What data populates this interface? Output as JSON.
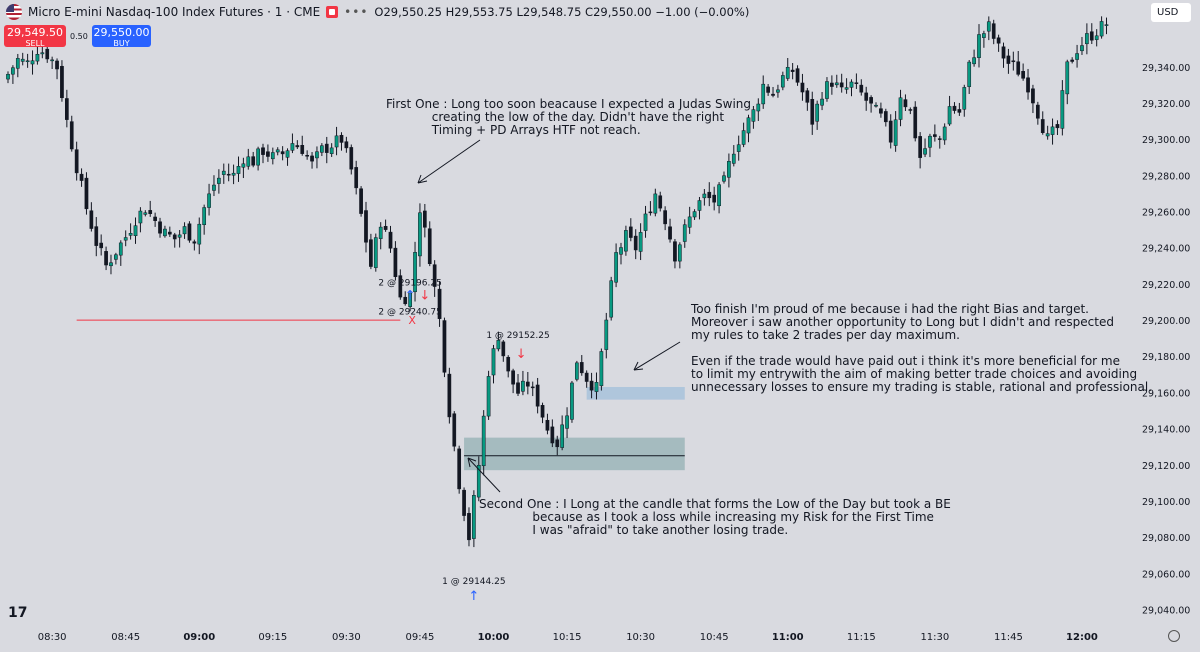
{
  "header": {
    "title": "Micro E-mini Nasdaq-100 Index Futures · 1 · CME",
    "more": "•••",
    "ohlc": "O29,550.25 H29,553.75 L29,548.75 C29,550.00 −1.00 (−0.00%)"
  },
  "trade": {
    "sell_price": "29,549.50",
    "sell_label": "SELL",
    "spread": "0.50",
    "buy_price": "29,550.00",
    "buy_label": "BUY"
  },
  "currency": "USD",
  "colors": {
    "up": "#089981",
    "down": "#131722",
    "annotation": "#131722",
    "zone": "#9bb5b8",
    "zone2": "#9fbfd9",
    "sell": "#f23645",
    "buy": "#2962ff"
  },
  "chart_data": {
    "type": "candlestick",
    "y_axis": {
      "ticks": [
        29340,
        29320,
        29300,
        29280,
        29260,
        29240,
        29220,
        29200,
        29180,
        29160,
        29140,
        29120,
        29100,
        29080,
        29060,
        29040
      ],
      "tick_labels": [
        "29,340.00",
        "29,320.00",
        "29,300.00",
        "29,280.00",
        "29,260.00",
        "29,240.00",
        "29,220.00",
        "29,200.00",
        "29,180.00",
        "29,160.00",
        "29,140.00",
        "29,120.00",
        "29,100.00",
        "29,080.00",
        "29,060.00",
        "29,040.00"
      ],
      "range": [
        29026,
        29364
      ]
    },
    "x_axis": {
      "labels": [
        "08:30",
        "08:45",
        "09:00",
        "09:15",
        "09:30",
        "09:45",
        "10:00",
        "10:15",
        "10:30",
        "10:45",
        "11:00",
        "11:15",
        "11:30",
        "11:45",
        "12:00"
      ],
      "label_bars": [
        9,
        24,
        39,
        54,
        69,
        84,
        99,
        114,
        129,
        144,
        159,
        174,
        189,
        204,
        219
      ],
      "bar_minutes": 1
    },
    "close_path": [
      [
        0,
        29336
      ],
      [
        2,
        29344
      ],
      [
        4,
        29342
      ],
      [
        6,
        29350
      ],
      [
        8,
        29347
      ],
      [
        10,
        29340
      ],
      [
        12,
        29310
      ],
      [
        14,
        29285
      ],
      [
        16,
        29262
      ],
      [
        18,
        29243
      ],
      [
        20,
        29230
      ],
      [
        22,
        29238
      ],
      [
        24,
        29246
      ],
      [
        26,
        29256
      ],
      [
        28,
        29262
      ],
      [
        30,
        29255
      ],
      [
        32,
        29248
      ],
      [
        34,
        29245
      ],
      [
        36,
        29250
      ],
      [
        38,
        29245
      ],
      [
        40,
        29262
      ],
      [
        42,
        29275
      ],
      [
        44,
        29282
      ],
      [
        46,
        29280
      ],
      [
        48,
        29290
      ],
      [
        50,
        29288
      ],
      [
        52,
        29294
      ],
      [
        54,
        29290
      ],
      [
        56,
        29292
      ],
      [
        58,
        29298
      ],
      [
        60,
        29295
      ],
      [
        62,
        29286
      ],
      [
        64,
        29294
      ],
      [
        66,
        29297
      ],
      [
        68,
        29300
      ],
      [
        70,
        29283
      ],
      [
        72,
        29258
      ],
      [
        74,
        29230
      ],
      [
        76,
        29255
      ],
      [
        78,
        29240
      ],
      [
        80,
        29212
      ],
      [
        82,
        29214
      ],
      [
        84,
        29262
      ],
      [
        86,
        29235
      ],
      [
        88,
        29200
      ],
      [
        90,
        29150
      ],
      [
        92,
        29110
      ],
      [
        94,
        29080
      ],
      [
        96,
        29120
      ],
      [
        98,
        29172
      ],
      [
        100,
        29192
      ],
      [
        102,
        29170
      ],
      [
        104,
        29160
      ],
      [
        106,
        29165
      ],
      [
        108,
        29155
      ],
      [
        110,
        29140
      ],
      [
        112,
        29132
      ],
      [
        114,
        29150
      ],
      [
        116,
        29178
      ],
      [
        118,
        29168
      ],
      [
        120,
        29162
      ],
      [
        122,
        29200
      ],
      [
        124,
        29236
      ],
      [
        126,
        29246
      ],
      [
        128,
        29240
      ],
      [
        130,
        29256
      ],
      [
        132,
        29270
      ],
      [
        134,
        29256
      ],
      [
        136,
        29236
      ],
      [
        138,
        29250
      ],
      [
        140,
        29262
      ],
      [
        142,
        29268
      ],
      [
        144,
        29266
      ],
      [
        146,
        29276
      ],
      [
        148,
        29295
      ],
      [
        150,
        29305
      ],
      [
        152,
        29315
      ],
      [
        154,
        29330
      ],
      [
        156,
        29325
      ],
      [
        158,
        29334
      ],
      [
        160,
        29338
      ],
      [
        162,
        29326
      ],
      [
        164,
        29310
      ],
      [
        166,
        29326
      ],
      [
        168,
        29332
      ],
      [
        170,
        29326
      ],
      [
        172,
        29330
      ],
      [
        174,
        29325
      ],
      [
        176,
        29318
      ],
      [
        178,
        29312
      ],
      [
        180,
        29300
      ],
      [
        182,
        29325
      ],
      [
        184,
        29315
      ],
      [
        186,
        29290
      ],
      [
        188,
        29300
      ],
      [
        190,
        29300
      ],
      [
        192,
        29318
      ],
      [
        194,
        29315
      ],
      [
        196,
        29340
      ],
      [
        198,
        29356
      ],
      [
        200,
        29362
      ],
      [
        202,
        29350
      ],
      [
        204,
        29342
      ],
      [
        206,
        29338
      ],
      [
        208,
        29330
      ],
      [
        210,
        29315
      ],
      [
        212,
        29300
      ],
      [
        214,
        29306
      ],
      [
        216,
        29340
      ],
      [
        218,
        29350
      ],
      [
        220,
        29356
      ],
      [
        222,
        29360
      ],
      [
        224,
        29364
      ]
    ],
    "levels": [
      {
        "name": "low-line",
        "price": 29200,
        "from_bar": 14,
        "to_bar": 80,
        "color": "#f23645",
        "marker": "X"
      }
    ],
    "zones": [
      {
        "name": "zone-fvg",
        "from_bar": 93,
        "to_bar": 138,
        "top": 29135,
        "bottom": 29117,
        "mid": 29125
      },
      {
        "name": "zone-entry2",
        "from_bar": 118,
        "to_bar": 138,
        "top": 29163,
        "bottom": 29156
      }
    ],
    "executions": [
      {
        "label": "2 @ 29196.25",
        "bar": 82,
        "price": 29219,
        "arrow": "buy"
      },
      {
        "label": "2 @ 29240.75",
        "bar": 82,
        "price": 29203,
        "arrow": "none"
      },
      {
        "label": "1 @ 29152.25",
        "bar": 104,
        "price": 29190,
        "arrow": "sell"
      },
      {
        "label": "1 @ 29144.25",
        "bar": 95,
        "price": 29054,
        "arrow": "buy"
      }
    ],
    "sell_marker": {
      "bar": 85,
      "price": 29219
    }
  },
  "annotations": {
    "first": "First One : Long too soon beacause I expected a Judas Swing\n            creating the low of the day. Didn't have the right\n            Timing + PD Arrays HTF not reach.",
    "finish": "Too finish I'm proud of me because i had the right Bias and target.\nMoreover i saw another opportunity to Long but I didn't and respected\nmy rules to take 2 trades per day maximum.\n\nEven if the trade would have paid out i think it's more beneficial for me\nto limit my entrywith the aim of making better trade choices and avoiding\nunnecessary losses to ensure my trading is stable, rational and professional.",
    "second": "Second One : I Long at the candle that forms the Low of the Day but took a BE\n              because as I took a loss while increasing my Risk for the First Time\n              I was \"afraid\" to take another losing trade."
  }
}
